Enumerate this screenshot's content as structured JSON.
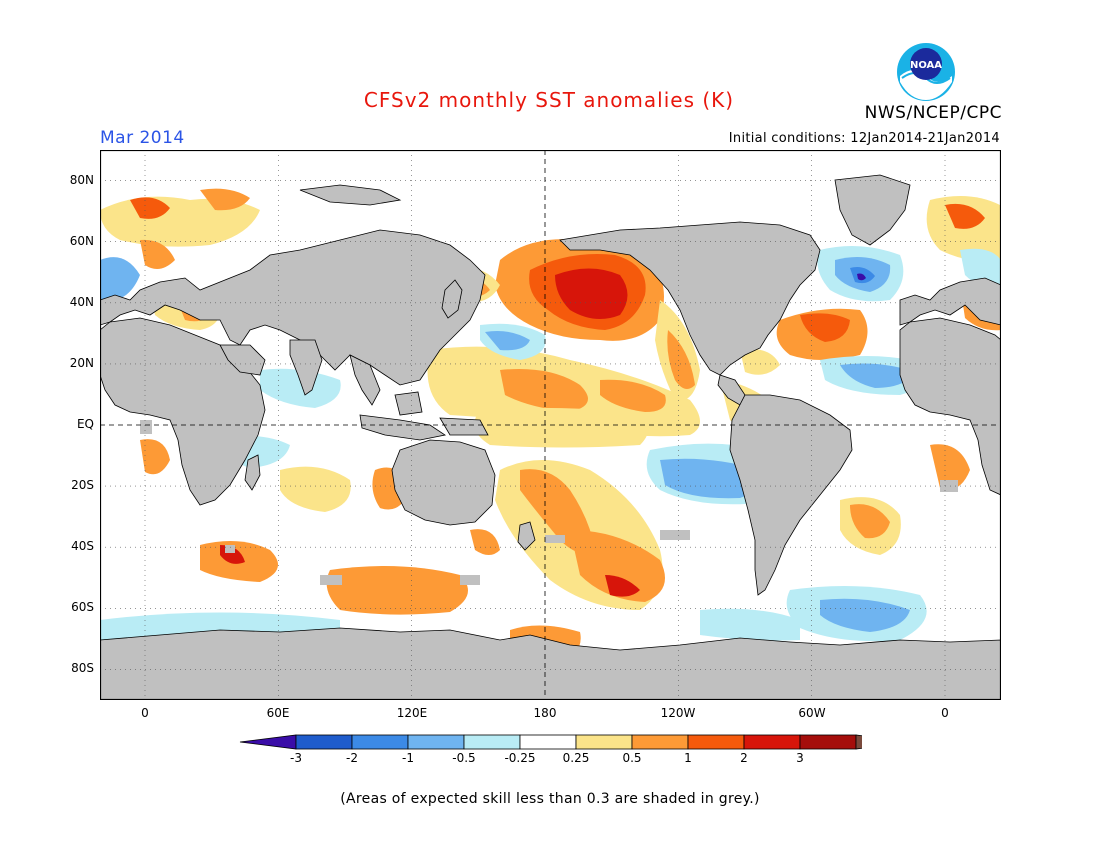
{
  "header": {
    "title": "CFSv2 monthly SST anomalies (K)",
    "month": "Mar 2014",
    "agency": "NWS/NCEP/CPC",
    "initial_conditions": "Initial conditions: 12Jan2014-21Jan2014",
    "logo_text": "NOAA"
  },
  "map": {
    "lat_labels": [
      "80N",
      "60N",
      "40N",
      "20N",
      "EQ",
      "20S",
      "40S",
      "60S",
      "80S"
    ],
    "lon_labels": [
      "0",
      "60E",
      "120E",
      "180",
      "120W",
      "60W",
      "0"
    ],
    "colors": {
      "land": "#c0c0c0",
      "ocean_neutral": "#ffffff",
      "low_skill": "#c0c0c0"
    }
  },
  "colorbar": {
    "labels": [
      "-3",
      "-2",
      "-1",
      "-0.5",
      "-0.25",
      "0.25",
      "0.5",
      "1",
      "2",
      "3"
    ],
    "colors": [
      "#3a0da8",
      "#1f5ccc",
      "#3c8ae6",
      "#6fb4f0",
      "#b9ecf5",
      "#ffffff",
      "#fbe48a",
      "#fd9a36",
      "#f55a0c",
      "#d7150a",
      "#a50e0b",
      "#7a4a3c"
    ]
  },
  "footnote": "(Areas of expected skill less than 0.3 are shaded in grey.)"
}
